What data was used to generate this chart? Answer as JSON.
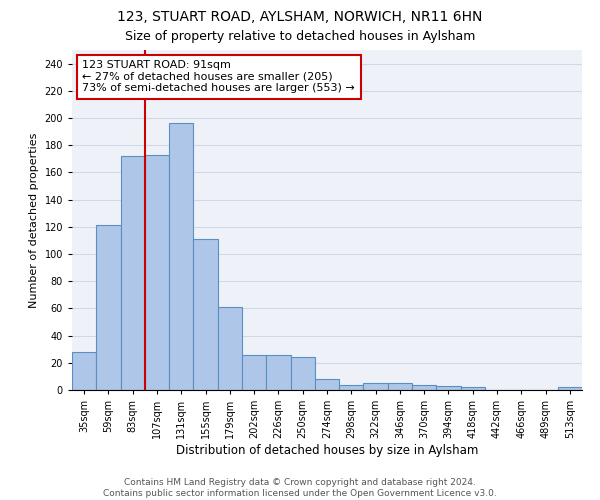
{
  "title1": "123, STUART ROAD, AYLSHAM, NORWICH, NR11 6HN",
  "title2": "Size of property relative to detached houses in Aylsham",
  "xlabel": "Distribution of detached houses by size in Aylsham",
  "ylabel": "Number of detached properties",
  "categories": [
    "35sqm",
    "59sqm",
    "83sqm",
    "107sqm",
    "131sqm",
    "155sqm",
    "179sqm",
    "202sqm",
    "226sqm",
    "250sqm",
    "274sqm",
    "298sqm",
    "322sqm",
    "346sqm",
    "370sqm",
    "394sqm",
    "418sqm",
    "442sqm",
    "466sqm",
    "489sqm",
    "513sqm"
  ],
  "values": [
    28,
    121,
    172,
    173,
    196,
    111,
    61,
    26,
    26,
    24,
    8,
    4,
    5,
    5,
    4,
    3,
    2,
    0,
    0,
    0,
    2
  ],
  "bar_color": "#aec6e8",
  "bar_edge_color": "#5a8fc2",
  "bar_edge_width": 0.8,
  "vline_color": "#cc0000",
  "vline_x": 2.5,
  "annotation_text": "123 STUART ROAD: 91sqm\n← 27% of detached houses are smaller (205)\n73% of semi-detached houses are larger (553) →",
  "annotation_box_color": "#ffffff",
  "annotation_box_edge_color": "#cc0000",
  "ylim": [
    0,
    250
  ],
  "yticks": [
    0,
    20,
    40,
    60,
    80,
    100,
    120,
    140,
    160,
    180,
    200,
    220,
    240
  ],
  "grid_color": "#d0d8e8",
  "bg_color": "#eef2f8",
  "footer": "Contains HM Land Registry data © Crown copyright and database right 2024.\nContains public sector information licensed under the Open Government Licence v3.0.",
  "title1_fontsize": 10,
  "title2_fontsize": 9,
  "xlabel_fontsize": 8.5,
  "ylabel_fontsize": 8,
  "tick_fontsize": 7,
  "annotation_fontsize": 8,
  "footer_fontsize": 6.5
}
